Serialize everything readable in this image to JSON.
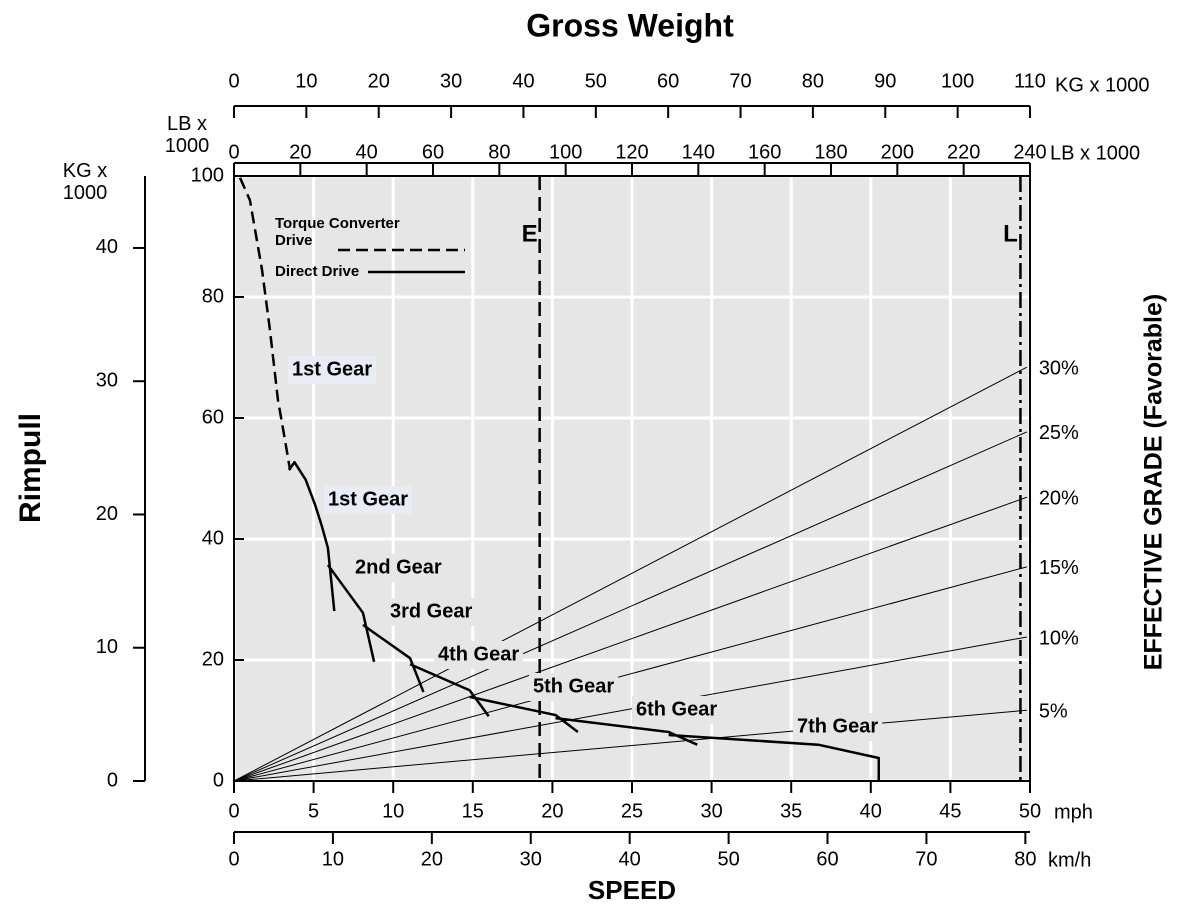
{
  "chart_data": {
    "type": "line",
    "title": "Gross Weight",
    "y_label": "Rimpull",
    "x_label": "SPEED",
    "y2_label": "EFFECTIVE GRADE (Favorable)",
    "xlim": [
      0,
      50
    ],
    "xticks": [
      0,
      5,
      10,
      15,
      20,
      25,
      30,
      35,
      40,
      45,
      50
    ],
    "x_unit": "mph",
    "ylim": [
      0,
      100
    ],
    "yticks": [
      0,
      20,
      40,
      60,
      80,
      100
    ],
    "y_unit": "LB x 1000",
    "grid": true,
    "kg_axis": {
      "label": "KG x 1000",
      "lim": [
        0,
        45.4
      ],
      "ticks": [
        0,
        10,
        20,
        30,
        40
      ]
    },
    "kmh_axis": {
      "label": "km/h",
      "lim": [
        0,
        80.47
      ],
      "ticks": [
        0,
        10,
        20,
        30,
        40,
        50,
        60,
        70,
        80
      ]
    },
    "top_kg_axis": {
      "label": "KG x 1000",
      "lim": [
        0,
        110
      ],
      "ticks": [
        0,
        10,
        20,
        30,
        40,
        50,
        60,
        70,
        80,
        90,
        100,
        110
      ]
    },
    "top_lb_axis": {
      "label": "LB x 1000",
      "lim": [
        0,
        240
      ],
      "ticks": [
        0,
        20,
        40,
        60,
        80,
        100,
        120,
        140,
        160,
        180,
        200,
        220,
        240
      ]
    },
    "series": [
      {
        "name": "Torque Converter Drive",
        "color": "#000000",
        "dash": true,
        "x": [
          0.38,
          1.0,
          1.76,
          2.26,
          2.76,
          3.2,
          3.52
        ],
        "values": [
          99.7,
          96,
          84.5,
          74.5,
          63,
          56.4,
          51.4
        ]
      },
      {
        "name": "Direct Drive",
        "color": "#000000",
        "dash": false,
        "x": [
          3.45,
          3.8,
          4.5,
          5.1,
          5.5,
          5.9,
          6.3,
          null,
          5.9,
          8.1,
          8.8,
          null,
          8.1,
          11.06,
          11.9,
          null,
          11.06,
          14.8,
          16.0,
          null,
          14.8,
          20.2,
          21.6,
          null,
          20.2,
          27.3,
          29.1,
          null,
          27.3,
          36.7,
          40.5,
          40.5
        ],
        "values": [
          51.4,
          52.7,
          49.8,
          45.6,
          42.3,
          38.5,
          28.1,
          null,
          35.7,
          27.8,
          19.7,
          null,
          25.8,
          20.3,
          14.7,
          null,
          19.3,
          15.0,
          10.7,
          null,
          13.9,
          10.9,
          8.1,
          null,
          10.4,
          8.1,
          6.0,
          null,
          7.6,
          6.0,
          3.8,
          0
        ]
      }
    ],
    "grade_lines": [
      {
        "label": "30%",
        "x": [
          0,
          49.8
        ],
        "values": [
          0,
          68.4
        ]
      },
      {
        "label": "25%",
        "x": [
          0,
          49.8
        ],
        "values": [
          0,
          57.7
        ]
      },
      {
        "label": "20%",
        "x": [
          0,
          49.8
        ],
        "values": [
          0,
          46.9
        ]
      },
      {
        "label": "15%",
        "x": [
          0,
          49.8
        ],
        "values": [
          0,
          35.4
        ]
      },
      {
        "label": "10%",
        "x": [
          0,
          49.8
        ],
        "values": [
          0,
          23.8
        ]
      },
      {
        "label": "5%",
        "x": [
          0,
          49.8
        ],
        "values": [
          0,
          11.7
        ]
      }
    ],
    "vlines": [
      {
        "label": "E",
        "x": 19.2,
        "style": "dashed"
      },
      {
        "label": "L",
        "x": 49.4,
        "style": "dashdot"
      }
    ],
    "annotations": [
      "1st Gear",
      "1st Gear",
      "2nd Gear",
      "3rd Gear",
      "4th Gear",
      "5th Gear",
      "6th Gear",
      "7th Gear"
    ]
  }
}
